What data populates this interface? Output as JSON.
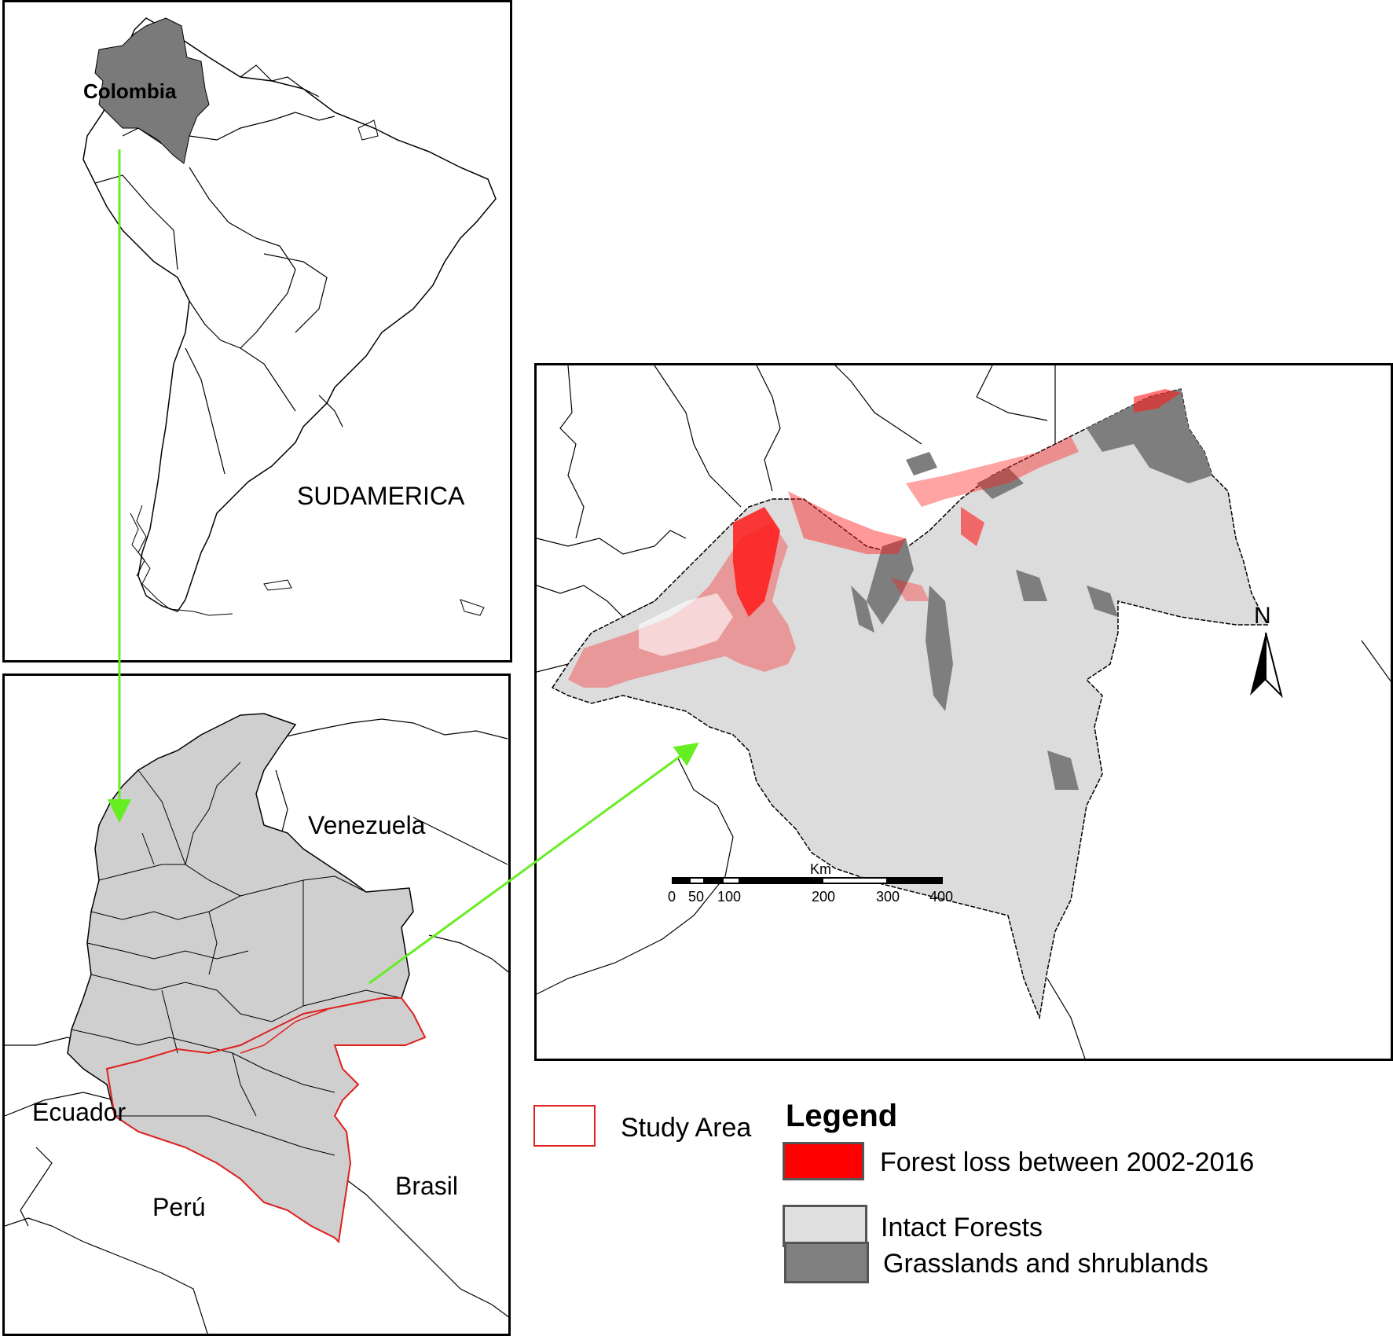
{
  "inset_south_america": {
    "country_label": "Colombia",
    "continent_label": "SUDAMERICA"
  },
  "inset_colombia": {
    "country_labels": {
      "venezuela": "Venezuela",
      "ecuador": "Ecuador",
      "peru": "Perú",
      "brasil": "Brasil"
    }
  },
  "study_map": {
    "north_label": "N",
    "scale_bar": {
      "unit": "Km",
      "ticks": [
        "0",
        "50",
        "100",
        "200",
        "300",
        "400"
      ]
    }
  },
  "legend": {
    "title": "Legend",
    "study_area_label": "Study Area",
    "items": [
      {
        "label": "Forest loss between 2002-2016",
        "color": "#ff0000"
      },
      {
        "label": "Intact Forests",
        "color": "#e0e0e0"
      },
      {
        "label": "Grasslands and shrublands",
        "color": "#808080"
      }
    ],
    "study_area_color": "#e02020"
  },
  "colors": {
    "arrow": "#66ee22",
    "colombia_fill_sa": "#7a7a7a",
    "colombia_fill_detail": "#cfcfcf",
    "study_area_outline": "#e02020"
  }
}
